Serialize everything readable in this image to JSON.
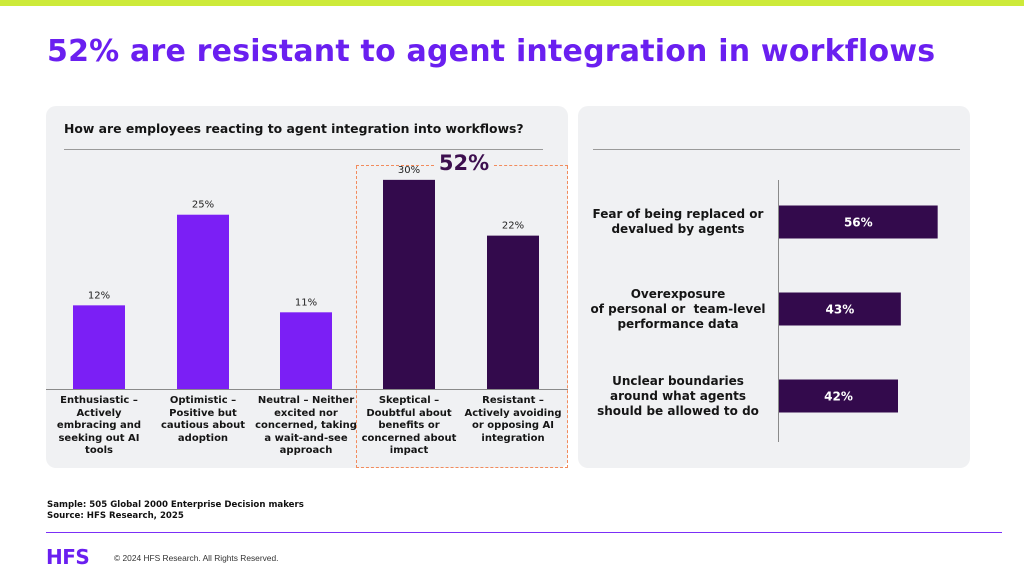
{
  "title": "52% are resistant to agent integration in workflows",
  "colors": {
    "accent": "#6a1ff0",
    "bar_positive": "#7b1ff5",
    "bar_resistant": "#330a4c",
    "highlight": "#f28b5c",
    "stripe": "#cdea3a"
  },
  "resistant_label": "52%",
  "chart_data": [
    {
      "type": "bar",
      "title": "How are employees reacting to agent integration into workflows?",
      "categories": [
        "Enthusiastic – Actively embracing and seeking out AI tools",
        "Optimistic – Positive but cautious about adoption",
        "Neutral – Neither excited nor concerned, taking a wait-and-see approach",
        "Skeptical – Doubtful about benefits or concerned about impact",
        "Resistant – Actively avoiding or opposing AI integration"
      ],
      "category_lines": [
        [
          "Enthusiastic –",
          "Actively",
          "embracing and",
          "seeking out AI",
          "tools"
        ],
        [
          "Optimistic –",
          "Positive but",
          "cautious about",
          "adoption"
        ],
        [
          "Neutral – Neither",
          "excited nor",
          "concerned, taking",
          "a wait-and-see",
          "approach"
        ],
        [
          "Skeptical –",
          "Doubtful about",
          "benefits or",
          "concerned about",
          "impact"
        ],
        [
          "Resistant –",
          "Actively avoiding",
          "or opposing AI",
          "integration"
        ]
      ],
      "values": [
        12,
        25,
        11,
        30,
        22
      ],
      "value_labels": [
        "12%",
        "25%",
        "11%",
        "30%",
        "22%"
      ],
      "bar_colors": [
        "#7b1ff5",
        "#7b1ff5",
        "#7b1ff5",
        "#330a4c",
        "#330a4c"
      ],
      "ylim": [
        0,
        35
      ],
      "grid": false
    },
    {
      "type": "bar",
      "orientation": "horizontal",
      "categories": [
        "Fear of being replaced or devalued by agents",
        "Overexposure of personal or team-level performance data",
        "Unclear boundaries around what agents should be allowed to do"
      ],
      "category_lines": [
        [
          "Fear of being replaced or",
          "devalued by agents"
        ],
        [
          "Overexposure",
          "of personal or  team-level",
          "performance data"
        ],
        [
          "Unclear boundaries",
          "around what agents",
          "should be allowed to do"
        ]
      ],
      "values": [
        56,
        43,
        42
      ],
      "value_labels": [
        "56%",
        "43%",
        "42%"
      ],
      "xlim": [
        0,
        60
      ],
      "grid": false
    }
  ],
  "footnote": {
    "sample": "Sample: 505 Global 2000 Enterprise Decision makers",
    "source": "Source: HFS Research, 2025"
  },
  "footer": {
    "logo": "HFS",
    "copyright": "© 2024 HFS Research. All Rights Reserved."
  }
}
